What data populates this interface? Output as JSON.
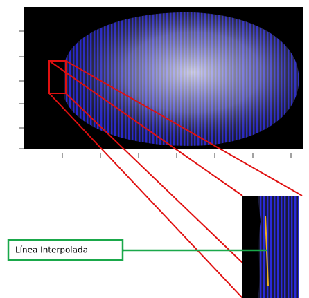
{
  "annotation": {
    "label": "Línea Interpolada"
  }
}
